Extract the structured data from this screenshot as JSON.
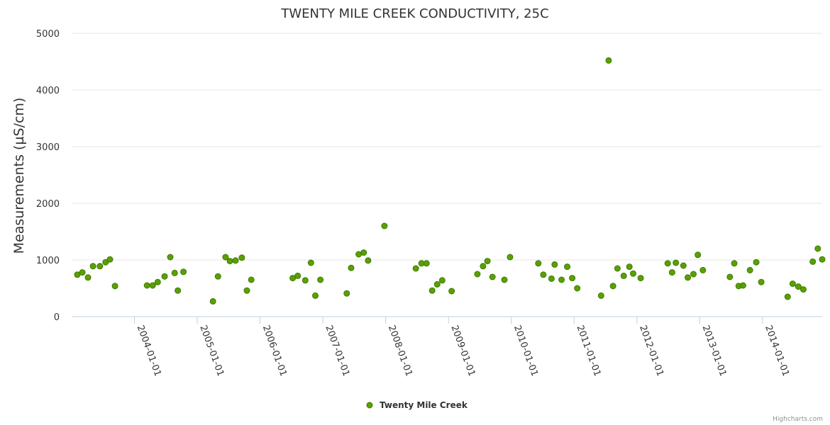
{
  "chart_data": {
    "type": "scatter",
    "title": "TWENTY MILE CREEK CONDUCTIVITY, 25C",
    "xlabel": "",
    "ylabel": "Measurements (µS/cm)",
    "ylim": [
      0,
      5000
    ],
    "yticks": [
      0,
      1000,
      2000,
      3000,
      4000,
      5000
    ],
    "xlim": [
      2003.0,
      2014.95
    ],
    "xticks": [
      {
        "value": 2004,
        "label": "2004-01-01"
      },
      {
        "value": 2005,
        "label": "2005-01-01"
      },
      {
        "value": 2006,
        "label": "2006-01-01"
      },
      {
        "value": 2007,
        "label": "2007-01-01"
      },
      {
        "value": 2008,
        "label": "2008-01-01"
      },
      {
        "value": 2009,
        "label": "2009-01-01"
      },
      {
        "value": 2010,
        "label": "2010-01-01"
      },
      {
        "value": 2011,
        "label": "2011-01-01"
      },
      {
        "value": 2012,
        "label": "2012-01-01"
      },
      {
        "value": 2013,
        "label": "2013-01-01"
      },
      {
        "value": 2014,
        "label": "2014-01-01"
      }
    ],
    "grid": true,
    "legend_position": "bottom-center",
    "series": [
      {
        "name": "Twenty Mile Creek",
        "color": "#5aa000",
        "stroke": "#3f7a00",
        "points": [
          [
            2003.09,
            740
          ],
          [
            2003.17,
            780
          ],
          [
            2003.26,
            690
          ],
          [
            2003.34,
            890
          ],
          [
            2003.45,
            890
          ],
          [
            2003.54,
            960
          ],
          [
            2003.61,
            1010
          ],
          [
            2003.69,
            540
          ],
          [
            2004.2,
            550
          ],
          [
            2004.29,
            550
          ],
          [
            2004.37,
            610
          ],
          [
            2004.48,
            710
          ],
          [
            2004.57,
            1050
          ],
          [
            2004.64,
            770
          ],
          [
            2004.69,
            460
          ],
          [
            2004.78,
            790
          ],
          [
            2005.25,
            270
          ],
          [
            2005.33,
            710
          ],
          [
            2005.45,
            1050
          ],
          [
            2005.52,
            980
          ],
          [
            2005.61,
            990
          ],
          [
            2005.71,
            1040
          ],
          [
            2005.79,
            460
          ],
          [
            2005.86,
            650
          ],
          [
            2006.52,
            680
          ],
          [
            2006.6,
            720
          ],
          [
            2006.72,
            640
          ],
          [
            2006.81,
            950
          ],
          [
            2006.88,
            370
          ],
          [
            2006.96,
            650
          ],
          [
            2007.38,
            410
          ],
          [
            2007.45,
            860
          ],
          [
            2007.57,
            1100
          ],
          [
            2007.65,
            1130
          ],
          [
            2007.72,
            990
          ],
          [
            2007.98,
            1600
          ],
          [
            2008.48,
            850
          ],
          [
            2008.57,
            940
          ],
          [
            2008.65,
            940
          ],
          [
            2008.74,
            460
          ],
          [
            2008.82,
            570
          ],
          [
            2008.9,
            640
          ],
          [
            2009.05,
            450
          ],
          [
            2009.46,
            750
          ],
          [
            2009.55,
            890
          ],
          [
            2009.62,
            980
          ],
          [
            2009.7,
            700
          ],
          [
            2009.89,
            650
          ],
          [
            2009.98,
            1050
          ],
          [
            2010.43,
            940
          ],
          [
            2010.51,
            740
          ],
          [
            2010.64,
            670
          ],
          [
            2010.69,
            920
          ],
          [
            2010.8,
            650
          ],
          [
            2010.89,
            880
          ],
          [
            2010.97,
            680
          ],
          [
            2011.05,
            500
          ],
          [
            2011.43,
            370
          ],
          [
            2011.55,
            4520
          ],
          [
            2011.62,
            540
          ],
          [
            2011.69,
            850
          ],
          [
            2011.79,
            720
          ],
          [
            2011.88,
            880
          ],
          [
            2011.94,
            760
          ],
          [
            2012.06,
            680
          ],
          [
            2012.49,
            940
          ],
          [
            2012.56,
            780
          ],
          [
            2012.62,
            950
          ],
          [
            2012.74,
            900
          ],
          [
            2012.81,
            690
          ],
          [
            2012.9,
            750
          ],
          [
            2012.97,
            1090
          ],
          [
            2013.05,
            820
          ],
          [
            2013.48,
            700
          ],
          [
            2013.55,
            940
          ],
          [
            2013.62,
            540
          ],
          [
            2013.69,
            550
          ],
          [
            2013.8,
            820
          ],
          [
            2013.9,
            960
          ],
          [
            2013.98,
            610
          ],
          [
            2014.4,
            350
          ],
          [
            2014.48,
            580
          ],
          [
            2014.57,
            530
          ],
          [
            2014.65,
            480
          ],
          [
            2014.8,
            970
          ],
          [
            2014.88,
            1200
          ],
          [
            2014.95,
            1010
          ]
        ]
      }
    ]
  },
  "credits": "Highcharts.com"
}
